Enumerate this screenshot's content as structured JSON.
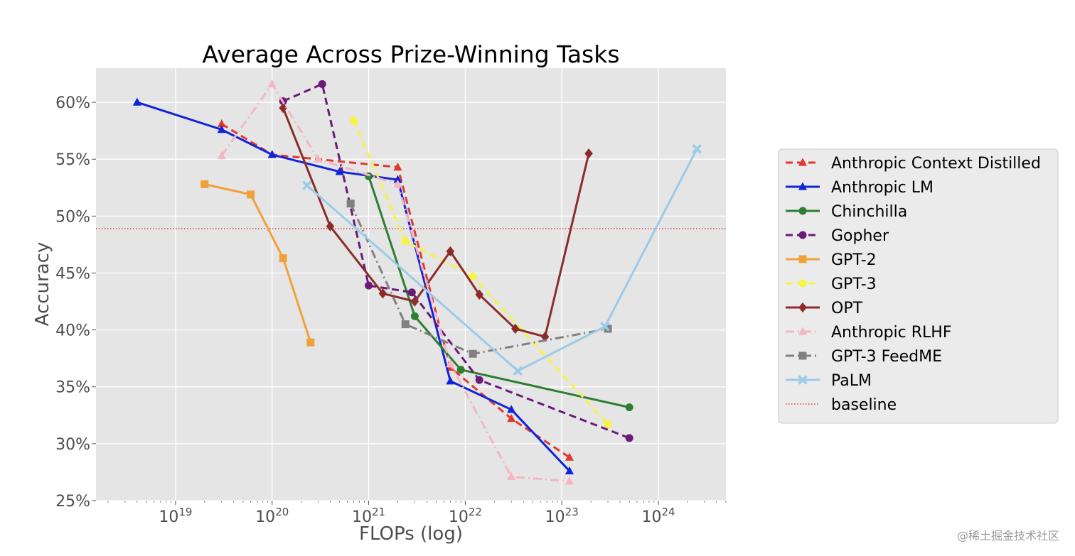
{
  "chart_data": {
    "type": "line",
    "title": "Average Across Prize-Winning Tasks",
    "xlabel": "FLOPs (log)",
    "ylabel": "Accuracy",
    "xscale": "log",
    "xlim": [
      1.5e+18,
      5e+24
    ],
    "ylim": [
      25,
      63
    ],
    "x_ticks": [
      {
        "value": 1e+19,
        "base": "10",
        "exp": "19"
      },
      {
        "value": 1e+20,
        "base": "10",
        "exp": "20"
      },
      {
        "value": 1e+21,
        "base": "10",
        "exp": "21"
      },
      {
        "value": 1e+22,
        "base": "10",
        "exp": "22"
      },
      {
        "value": 1e+23,
        "base": "10",
        "exp": "23"
      },
      {
        "value": 1e+24,
        "base": "10",
        "exp": "24"
      }
    ],
    "y_ticks": [
      {
        "value": 25,
        "label": "25%"
      },
      {
        "value": 30,
        "label": "30%"
      },
      {
        "value": 35,
        "label": "35%"
      },
      {
        "value": 40,
        "label": "40%"
      },
      {
        "value": 45,
        "label": "45%"
      },
      {
        "value": 50,
        "label": "50%"
      },
      {
        "value": 55,
        "label": "55%"
      },
      {
        "value": 60,
        "label": "60%"
      }
    ],
    "grid": true,
    "legend_position": "outside-right",
    "baseline": {
      "name": "baseline",
      "value": 48.9,
      "color": "#e03a3a"
    },
    "series": [
      {
        "name": "Anthropic Context Distilled",
        "color": "#e03a2f",
        "dash": "10,6",
        "marker": "triangle",
        "x": [
          3e+19,
          1e+20,
          2e+21,
          7e+21,
          3e+22,
          1.2e+23
        ],
        "y": [
          58.1,
          55.4,
          54.3,
          36.7,
          32.2,
          28.8
        ]
      },
      {
        "name": "Anthropic LM",
        "color": "#1024d9",
        "dash": "",
        "marker": "triangle",
        "x": [
          4e+18,
          3e+19,
          1e+20,
          5e+20,
          2e+21,
          7e+21,
          3e+22,
          1.2e+23
        ],
        "y": [
          60.0,
          57.6,
          55.4,
          53.9,
          53.2,
          35.5,
          33.0,
          27.6
        ]
      },
      {
        "name": "Chinchilla",
        "color": "#2e7d32",
        "dash": "",
        "marker": "circle",
        "x": [
          1e+21,
          3e+21,
          9e+21,
          5e+23
        ],
        "y": [
          53.5,
          41.2,
          36.5,
          33.2
        ]
      },
      {
        "name": "Gopher",
        "color": "#6a1b7a",
        "dash": "10,6",
        "marker": "circle",
        "x": [
          1.3e+20,
          3.3e+20,
          1e+21,
          2.8e+21,
          1.4e+22,
          5e+23
        ],
        "y": [
          60.1,
          61.6,
          43.9,
          43.3,
          35.6,
          30.5
        ]
      },
      {
        "name": "GPT-2",
        "color": "#f0a23a",
        "dash": "",
        "marker": "square",
        "x": [
          2e+19,
          6e+19,
          1.3e+20,
          2.5e+20
        ],
        "y": [
          52.8,
          51.9,
          46.3,
          38.9
        ]
      },
      {
        "name": "GPT-3",
        "color": "#f5f542",
        "dash": "10,6",
        "marker": "circle",
        "x": [
          7e+20,
          2.4e+21,
          1.2e+22,
          3e+23
        ],
        "y": [
          58.4,
          47.8,
          44.7,
          31.7
        ]
      },
      {
        "name": "OPT",
        "color": "#8b2c2a",
        "dash": "",
        "marker": "diamond",
        "x": [
          1.3e+20,
          4e+20,
          1.4e+21,
          3e+21,
          7e+21,
          1.4e+22,
          3.3e+22,
          6.7e+22,
          1.9e+23
        ],
        "y": [
          59.5,
          49.1,
          43.2,
          42.5,
          46.9,
          43.1,
          40.1,
          39.4,
          55.5
        ]
      },
      {
        "name": "Anthropic RLHF",
        "color": "#f4b6c2",
        "dash": "12,5,2,5",
        "marker": "triangle",
        "x": [
          3e+19,
          1e+20,
          3e+20,
          2e+21,
          7e+21,
          3e+22,
          1.2e+23
        ],
        "y": [
          55.3,
          61.6,
          55.0,
          52.8,
          37.0,
          27.1,
          26.7
        ]
      },
      {
        "name": "GPT-3 FeedME",
        "color": "#808080",
        "dash": "12,5,2,5",
        "marker": "square",
        "x": [
          6.5e+20,
          2.4e+21,
          1.2e+22,
          3e+23
        ],
        "y": [
          51.1,
          40.5,
          37.9,
          40.1
        ]
      },
      {
        "name": "PaLM",
        "color": "#9bcbe8",
        "dash": "",
        "marker": "x",
        "x": [
          2.3e+20,
          3.5e+22,
          2.8e+23,
          2.5e+24
        ],
        "y": [
          52.7,
          36.4,
          40.3,
          55.9
        ]
      }
    ]
  },
  "watermark": "@稀土掘金技术社区"
}
